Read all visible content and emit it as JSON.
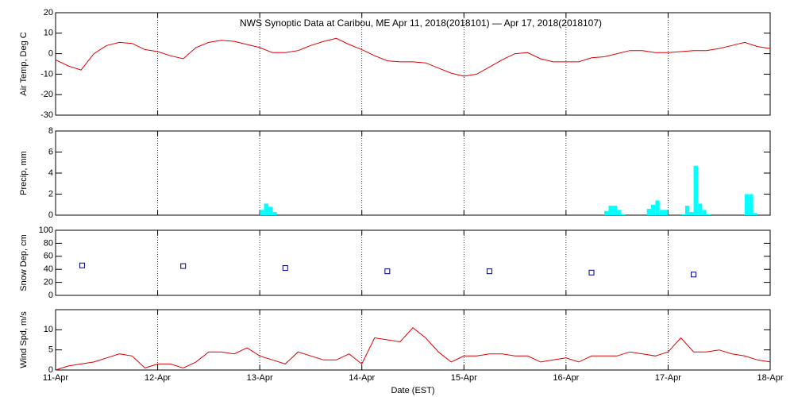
{
  "chart_data": [
    {
      "type": "line",
      "title": "NWS Synoptic Data at Caribou, ME   Apr 11, 2018(2018101) — Apr 17, 2018(2018107)",
      "ylabel": "Air Temp, Deg C",
      "color": "#e00000",
      "x": [
        0,
        0.125,
        0.25,
        0.375,
        0.5,
        0.625,
        0.75,
        0.875,
        1,
        1.125,
        1.25,
        1.375,
        1.5,
        1.625,
        1.75,
        1.875,
        2,
        2.125,
        2.25,
        2.375,
        2.5,
        2.625,
        2.75,
        2.875,
        3,
        3.125,
        3.25,
        3.375,
        3.5,
        3.625,
        3.75,
        3.875,
        4,
        4.125,
        4.25,
        4.375,
        4.5,
        4.625,
        4.75,
        4.875,
        5,
        5.125,
        5.25,
        5.375,
        5.5,
        5.625,
        5.75,
        5.875,
        6,
        6.125,
        6.25,
        6.375,
        6.5,
        6.625,
        6.75,
        6.875,
        7
      ],
      "values": [
        -3,
        -6,
        -8,
        0,
        4,
        5.5,
        5,
        2,
        1,
        -1,
        -2.5,
        3,
        5.5,
        6.5,
        6,
        4.5,
        3,
        0.5,
        0.5,
        1.5,
        4,
        6,
        7.5,
        4.5,
        2,
        -1,
        -3.5,
        -4,
        -4,
        -4.5,
        -7,
        -9.5,
        -11,
        -10,
        -6.5,
        -3,
        0,
        0.5,
        -2.5,
        -4,
        -4,
        -4,
        -2,
        -1.5,
        0,
        1.5,
        1.5,
        0.5,
        0.5,
        1,
        1.5,
        1.5,
        2.5,
        4,
        5.5,
        3.5,
        2.5
      ],
      "xlim": [
        0,
        7
      ],
      "xticks": [
        0,
        1,
        2,
        3,
        4,
        5,
        6,
        7
      ],
      "ylim": [
        -30,
        20
      ],
      "yticks": [
        -30,
        -20,
        -10,
        0,
        10,
        20
      ],
      "grid": true
    },
    {
      "type": "bar",
      "ylabel": "Precip, mm",
      "color": "#00ffff",
      "x": [
        2.0,
        2.042,
        2.083,
        2.125,
        5.375,
        5.417,
        5.458,
        5.5,
        5.542,
        5.792,
        5.833,
        5.875,
        5.917,
        5.958,
        6.125,
        6.167,
        6.208,
        6.25,
        6.292,
        6.333,
        6.375,
        6.75,
        6.792,
        6.833
      ],
      "values": [
        0.5,
        1.1,
        0.8,
        0.3,
        0.4,
        0.9,
        0.9,
        0.5,
        0.1,
        0.6,
        1.0,
        1.4,
        0.5,
        0.5,
        0.1,
        0.9,
        0.3,
        4.7,
        1.1,
        0.5,
        0.1,
        2.0,
        2.0,
        0.2
      ],
      "xlim": [
        0,
        7
      ],
      "xticks": [
        0,
        1,
        2,
        3,
        4,
        5,
        6,
        7
      ],
      "ylim": [
        0,
        8
      ],
      "yticks": [
        0,
        2,
        4,
        6,
        8
      ],
      "grid": true
    },
    {
      "type": "scatter",
      "ylabel": "Snow Dep, cm",
      "color": "#000080",
      "x": [
        0.26,
        1.25,
        2.25,
        3.25,
        4.25,
        5.25,
        6.25
      ],
      "values": [
        46,
        45,
        42,
        37,
        37,
        35,
        32
      ],
      "xlim": [
        0,
        7
      ],
      "xticks": [
        0,
        1,
        2,
        3,
        4,
        5,
        6,
        7
      ],
      "ylim": [
        0,
        100
      ],
      "yticks": [
        0,
        20,
        40,
        60,
        80,
        100
      ],
      "grid": true
    },
    {
      "type": "line",
      "ylabel": "Wind Spd, m/s",
      "xlabel": "Date (EST)",
      "color": "#e00000",
      "x": [
        0,
        0.125,
        0.25,
        0.375,
        0.5,
        0.625,
        0.75,
        0.875,
        1,
        1.125,
        1.25,
        1.375,
        1.5,
        1.625,
        1.75,
        1.875,
        2,
        2.125,
        2.25,
        2.375,
        2.5,
        2.625,
        2.75,
        2.875,
        3,
        3.125,
        3.25,
        3.375,
        3.5,
        3.625,
        3.75,
        3.875,
        4,
        4.125,
        4.25,
        4.375,
        4.5,
        4.625,
        4.75,
        4.875,
        5,
        5.125,
        5.25,
        5.375,
        5.5,
        5.625,
        5.75,
        5.875,
        6,
        6.125,
        6.25,
        6.375,
        6.5,
        6.625,
        6.75,
        6.875,
        7
      ],
      "values": [
        0,
        1,
        1.5,
        2,
        3,
        4,
        3.5,
        0.5,
        1.5,
        1.5,
        0.5,
        2,
        4.5,
        4.5,
        4,
        5.5,
        3.5,
        2.5,
        1.5,
        4.5,
        3.5,
        2.5,
        2.5,
        4,
        1.5,
        8,
        7.5,
        7,
        10.5,
        8,
        4.5,
        2,
        3.5,
        3.5,
        4,
        4,
        3.5,
        3.5,
        2,
        2.5,
        3,
        2,
        3.5,
        3.5,
        3.5,
        4.5,
        4,
        3.5,
        4.5,
        8,
        4.5,
        4.5,
        5,
        4,
        3.5,
        2.5,
        2
      ],
      "xlim": [
        0,
        7
      ],
      "xticks": [
        {
          "value": 0,
          "label": "11-Apr"
        },
        {
          "value": 1,
          "label": "12-Apr"
        },
        {
          "value": 2,
          "label": "13-Apr"
        },
        {
          "value": 3,
          "label": "14-Apr"
        },
        {
          "value": 4,
          "label": "15-Apr"
        },
        {
          "value": 5,
          "label": "16-Apr"
        },
        {
          "value": 6,
          "label": "17-Apr"
        },
        {
          "value": 7,
          "label": "18-Apr"
        }
      ],
      "ylim": [
        0,
        15
      ],
      "yticks": [
        0,
        5,
        10
      ],
      "grid": true
    }
  ]
}
